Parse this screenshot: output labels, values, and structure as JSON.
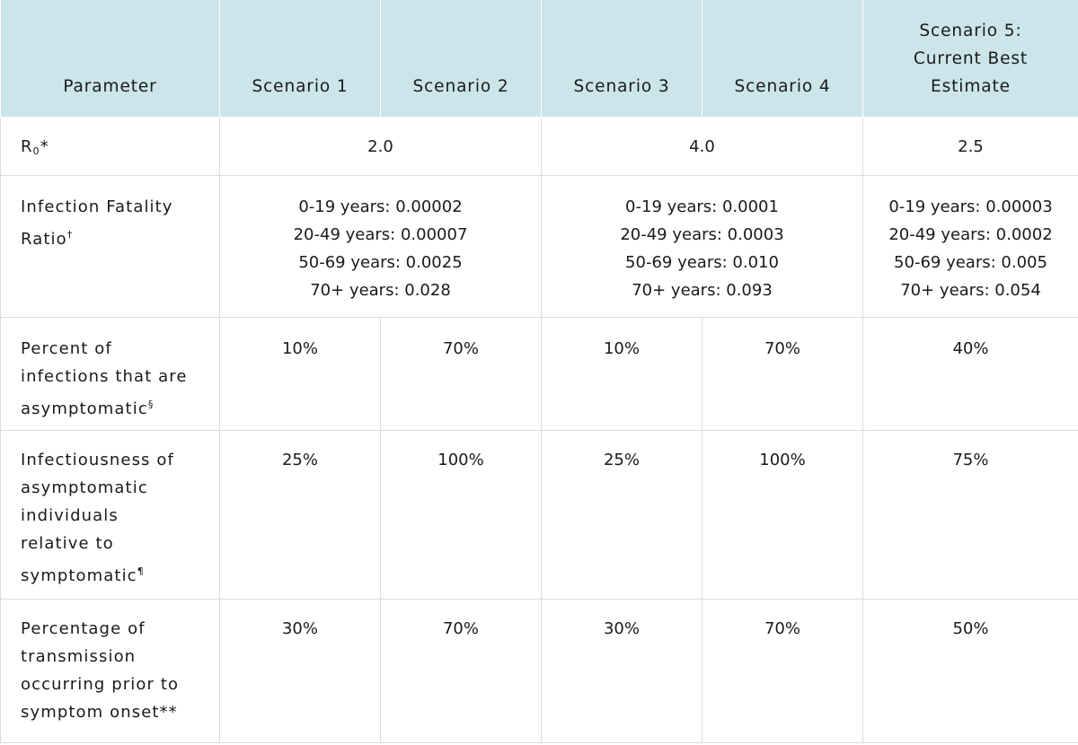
{
  "header": {
    "parameter": "Parameter",
    "scenario1": "Scenario 1",
    "scenario2": "Scenario 2",
    "scenario3": "Scenario 3",
    "scenario4": "Scenario 4",
    "scenario5_line1": "Scenario 5:",
    "scenario5_line2": "Current Best",
    "scenario5_line3": "Estimate"
  },
  "rows": {
    "r0": {
      "label": "R",
      "label_sub": "0",
      "label_suffix": "*",
      "s12": "2.0",
      "s34": "4.0",
      "s5": "2.5"
    },
    "ifr": {
      "label_line1": "Infection Fatality",
      "label_line2": "Ratio",
      "label_sup": "†",
      "s12": [
        "0-19 years: 0.00002",
        "20-49 years: 0.00007",
        "50-69 years: 0.0025",
        "70+ years: 0.028"
      ],
      "s34": [
        "0-19 years: 0.0001",
        "20-49 years: 0.0003",
        "50-69 years: 0.010",
        "70+ years: 0.093"
      ],
      "s5": [
        "0-19 years: 0.00003",
        "20-49 years: 0.0002",
        "50-69 years: 0.005",
        "70+ years: 0.054"
      ]
    },
    "asymptomatic": {
      "label_line1": "Percent of",
      "label_line2": "infections that are",
      "label_line3": "asymptomatic",
      "label_sup": "§",
      "s1": "10%",
      "s2": "70%",
      "s3": "10%",
      "s4": "70%",
      "s5": "40%"
    },
    "infectiousness": {
      "label_line1": "Infectiousness of",
      "label_line2": "asymptomatic",
      "label_line3": "individuals",
      "label_line4": "relative to",
      "label_line5": "symptomatic",
      "label_sup": "¶",
      "s1": "25%",
      "s2": "100%",
      "s3": "25%",
      "s4": "100%",
      "s5": "75%"
    },
    "presymptomatic": {
      "label_line1": "Percentage of",
      "label_line2": "transmission",
      "label_line3": "occurring prior to",
      "label_line4": "symptom onset**",
      "s1": "30%",
      "s2": "70%",
      "s3": "30%",
      "s4": "70%",
      "s5": "50%"
    }
  },
  "colors": {
    "header_bg": "#cbe5ea",
    "border": "#dcdcdc",
    "text": "#1a1a1a"
  }
}
